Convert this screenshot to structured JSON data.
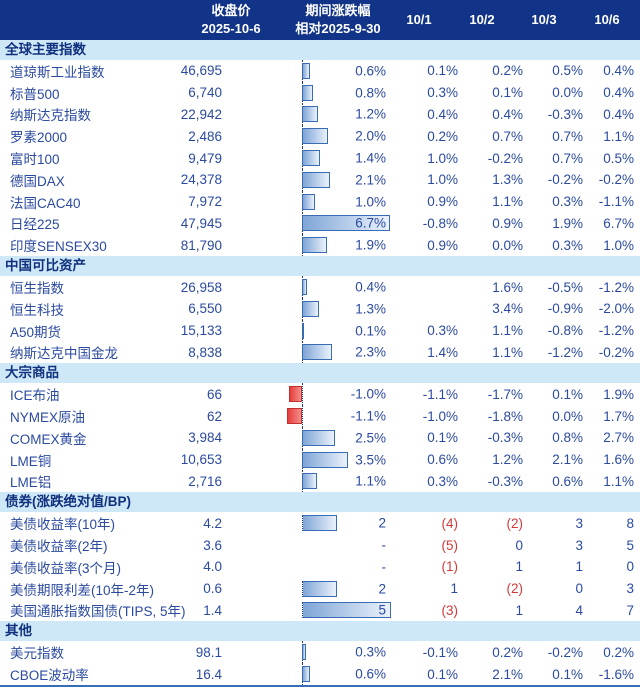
{
  "header": {
    "close_line1": "收盘价",
    "close_line2": "2025-10-6",
    "change_line1": "期间涨跌幅",
    "change_line2": "相对2025-9-30",
    "days": [
      "10/1",
      "10/2",
      "10/3",
      "10/6"
    ]
  },
  "colors": {
    "header_bg": "#123488",
    "header_text": "#ffffff",
    "section_bg": "#cfe8f7",
    "section_text": "#10317e",
    "text_blue": "#2b4aa0",
    "negative_red": "#d23a3a",
    "bar_positive_from": "#7fa5d6",
    "bar_positive_to": "#eaf2fb",
    "bar_positive_border": "#3a6bb5",
    "bar_negative_from": "#e63c3b",
    "bar_negative_to": "#f2908b",
    "bar_negative_border": "#c03030",
    "axis_dotted": "#223a7d",
    "bottom_line": "#366db7"
  },
  "chart_data": {
    "type": "table",
    "columns": [
      "收盘价 2025-10-6",
      "期间涨跌幅 相对2025-9-30",
      "10/1",
      "10/2",
      "10/3",
      "10/6"
    ],
    "notes": "期间涨跌幅列含内嵌条形图：正值蓝色渐变向右，负值红色渐变向左，基线为竖虚线；债券节数值为BP，括号值为负(红色)",
    "sections": [
      {
        "title": "全球主要指数",
        "unit": "percent",
        "bar_scale": 13.2,
        "rows": [
          {
            "name": "道琼斯工业指数",
            "close": "46,695",
            "change": 0.6,
            "change_label": "0.6%",
            "days": [
              "0.1%",
              "0.2%",
              "0.5%",
              "0.4%"
            ]
          },
          {
            "name": "标普500",
            "close": "6,740",
            "change": 0.8,
            "change_label": "0.8%",
            "days": [
              "0.3%",
              "0.1%",
              "0.0%",
              "0.4%"
            ]
          },
          {
            "name": "纳斯达克指数",
            "close": "22,942",
            "change": 1.2,
            "change_label": "1.2%",
            "days": [
              "0.4%",
              "0.4%",
              "-0.3%",
              "0.4%"
            ]
          },
          {
            "name": "罗素2000",
            "close": "2,486",
            "change": 2.0,
            "change_label": "2.0%",
            "days": [
              "0.2%",
              "0.7%",
              "0.7%",
              "1.1%"
            ]
          },
          {
            "name": "富时100",
            "close": "9,479",
            "change": 1.4,
            "change_label": "1.4%",
            "days": [
              "1.0%",
              "-0.2%",
              "0.7%",
              "0.5%"
            ]
          },
          {
            "name": "德国DAX",
            "close": "24,378",
            "change": 2.1,
            "change_label": "2.1%",
            "days": [
              "1.0%",
              "1.3%",
              "-0.2%",
              "-0.2%"
            ]
          },
          {
            "name": "法国CAC40",
            "close": "7,972",
            "change": 1.0,
            "change_label": "1.0%",
            "days": [
              "0.9%",
              "1.1%",
              "0.3%",
              "-1.1%"
            ]
          },
          {
            "name": "日经225",
            "close": "47,945",
            "change": 6.7,
            "change_label": "6.7%",
            "days": [
              "-0.8%",
              "0.9%",
              "1.9%",
              "6.7%"
            ]
          },
          {
            "name": "印度SENSEX30",
            "close": "81,790",
            "change": 1.9,
            "change_label": "1.9%",
            "days": [
              "0.9%",
              "0.0%",
              "0.3%",
              "1.0%"
            ]
          }
        ]
      },
      {
        "title": "中国可比资产",
        "unit": "percent",
        "bar_scale": 13.2,
        "rows": [
          {
            "name": "恒生指数",
            "close": "26,958",
            "change": 0.4,
            "change_label": "0.4%",
            "days": [
              "",
              "1.6%",
              "-0.5%",
              "-1.2%"
            ]
          },
          {
            "name": "恒生科技",
            "close": "6,550",
            "change": 1.3,
            "change_label": "1.3%",
            "days": [
              "",
              "3.4%",
              "-0.9%",
              "-2.0%"
            ]
          },
          {
            "name": "A50期货",
            "close": "15,133",
            "change": 0.1,
            "change_label": "0.1%",
            "days": [
              "0.3%",
              "1.1%",
              "-0.8%",
              "-1.2%"
            ]
          },
          {
            "name": "纳斯达克中国金龙",
            "close": "8,838",
            "change": 2.3,
            "change_label": "2.3%",
            "days": [
              "1.4%",
              "1.1%",
              "-1.2%",
              "-0.2%"
            ]
          }
        ]
      },
      {
        "title": "大宗商品",
        "unit": "percent",
        "bar_scale": 13.2,
        "rows": [
          {
            "name": "ICE布油",
            "close": "66",
            "change": -1.0,
            "change_label": "-1.0%",
            "days": [
              "-1.1%",
              "-1.7%",
              "0.1%",
              "1.9%"
            ]
          },
          {
            "name": "NYMEX原油",
            "close": "62",
            "change": -1.1,
            "change_label": "-1.1%",
            "days": [
              "-1.0%",
              "-1.8%",
              "0.0%",
              "1.7%"
            ]
          },
          {
            "name": "COMEX黄金",
            "close": "3,984",
            "change": 2.5,
            "change_label": "2.5%",
            "days": [
              "0.1%",
              "-0.3%",
              "0.8%",
              "2.7%"
            ]
          },
          {
            "name": "LME铜",
            "close": "10,653",
            "change": 3.5,
            "change_label": "3.5%",
            "days": [
              "0.6%",
              "1.2%",
              "2.1%",
              "1.6%"
            ]
          },
          {
            "name": "LME铝",
            "close": "2,716",
            "change": 1.1,
            "change_label": "1.1%",
            "days": [
              "0.3%",
              "-0.3%",
              "0.6%",
              "1.1%"
            ]
          }
        ]
      },
      {
        "title": "债券(涨跌绝对值/BP)",
        "unit": "bp",
        "bar_scale": 17.7,
        "rows": [
          {
            "name": "美债收益率(10年)",
            "close": "4.2",
            "change": 2,
            "change_label": "2",
            "days": [
              "(4)",
              "(2)",
              "3",
              "8"
            ]
          },
          {
            "name": "美债收益率(2年)",
            "close": "3.6",
            "change": null,
            "change_label": "-",
            "days": [
              "(5)",
              "0",
              "3",
              "5"
            ]
          },
          {
            "name": "美债收益率(3个月)",
            "close": "4.0",
            "change": null,
            "change_label": "-",
            "days": [
              "(1)",
              "1",
              "1",
              "0"
            ]
          },
          {
            "name": "美债期限利差(10年-2年)",
            "close": "0.6",
            "change": 2,
            "change_label": "2",
            "days": [
              "1",
              "(2)",
              "0",
              "3"
            ]
          },
          {
            "name": "美国通胀指数国债(TIPS, 5年)",
            "close": "1.4",
            "change": 5,
            "change_label": "5",
            "days": [
              "(3)",
              "1",
              "4",
              "7"
            ]
          }
        ]
      },
      {
        "title": "其他",
        "unit": "percent",
        "bar_scale": 13.2,
        "rows": [
          {
            "name": "美元指数",
            "close": "98.1",
            "change": 0.3,
            "change_label": "0.3%",
            "days": [
              "-0.1%",
              "0.2%",
              "-0.2%",
              "0.2%"
            ]
          },
          {
            "name": "CBOE波动率",
            "close": "16.4",
            "change": 0.6,
            "change_label": "0.6%",
            "days": [
              "0.1%",
              "2.1%",
              "0.1%",
              "-1.6%"
            ]
          }
        ]
      }
    ]
  }
}
